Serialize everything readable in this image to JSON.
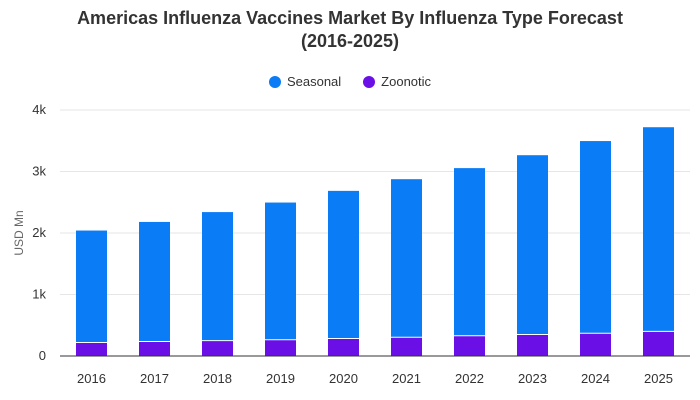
{
  "chart_data": {
    "type": "bar",
    "stacked": true,
    "title_line1": "Americas Influenza Vaccines Market By Influenza Type Forecast",
    "title_line2": "(2016-2025)",
    "xlabel": "",
    "ylabel": "USD Mn",
    "categories": [
      "2016",
      "2017",
      "2018",
      "2019",
      "2020",
      "2021",
      "2022",
      "2023",
      "2024",
      "2025"
    ],
    "series": [
      {
        "name": "Zoonotic",
        "color": "#6A0FE6",
        "values": [
          220,
          235,
          250,
          265,
          285,
          305,
          330,
          350,
          370,
          400
        ]
      },
      {
        "name": "Seasonal",
        "color": "#0A7CF5",
        "values": [
          1820,
          1945,
          2090,
          2230,
          2400,
          2570,
          2725,
          2915,
          3125,
          3320
        ]
      }
    ],
    "legend_order": [
      "Seasonal",
      "Zoonotic"
    ],
    "legend_position": "top",
    "ylim": [
      0,
      4000
    ],
    "yticks": [
      {
        "value": 0,
        "label": "0"
      },
      {
        "value": 1000,
        "label": "1k"
      },
      {
        "value": 2000,
        "label": "2k"
      },
      {
        "value": 3000,
        "label": "3k"
      },
      {
        "value": 4000,
        "label": "4k"
      }
    ],
    "grid": true
  }
}
